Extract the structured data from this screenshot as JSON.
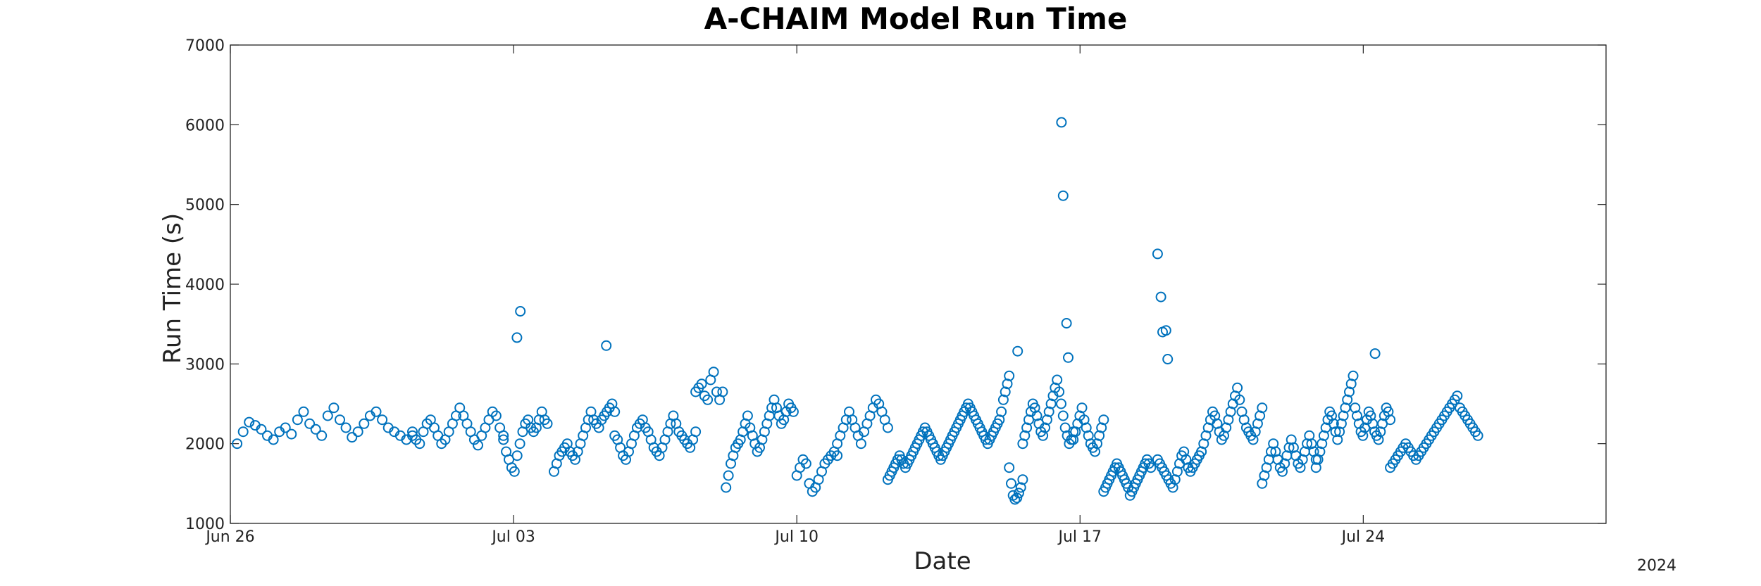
{
  "chart_data": {
    "type": "scatter",
    "title": "A-CHAIM Model Run Time",
    "xlabel": "Date",
    "ylabel": "Run Time (s)",
    "year_label": "2024",
    "x_unit": "date (2024)",
    "xlim": [
      "2024-06-26",
      "2024-07-30"
    ],
    "ylim": [
      1000,
      7000
    ],
    "x_ticks": [
      "Jun 26",
      "Jul 03",
      "Jul 10",
      "Jul 17",
      "Jul 24"
    ],
    "x_tick_dates": [
      "2024-06-26",
      "2024-07-03",
      "2024-07-10",
      "2024-07-17",
      "2024-07-24"
    ],
    "y_ticks": [
      "1000",
      "2000",
      "3000",
      "4000",
      "5000",
      "6000",
      "7000"
    ],
    "marker": "open-circle",
    "marker_color": "#0072BD",
    "grid": false,
    "highlight_points": [
      {
        "date": "2024-07-16T13:00",
        "run_time_s": 6030
      },
      {
        "date": "2024-07-16T14:00",
        "run_time_s": 5110
      },
      {
        "date": "2024-07-16T16:00",
        "run_time_s": 3510
      },
      {
        "date": "2024-07-16T17:00",
        "run_time_s": 3080
      },
      {
        "date": "2024-07-18T22:00",
        "run_time_s": 4380
      },
      {
        "date": "2024-07-19T00:00",
        "run_time_s": 3840
      },
      {
        "date": "2024-07-19T01:00",
        "run_time_s": 3400
      },
      {
        "date": "2024-07-19T03:00",
        "run_time_s": 3420
      },
      {
        "date": "2024-07-19T04:00",
        "run_time_s": 3060
      },
      {
        "date": "2024-07-03T04:00",
        "run_time_s": 3660
      },
      {
        "date": "2024-07-03T02:00",
        "run_time_s": 3330
      },
      {
        "date": "2024-07-15T11:00",
        "run_time_s": 3160
      },
      {
        "date": "2024-07-05T07:00",
        "run_time_s": 3230
      },
      {
        "date": "2024-07-24T07:00",
        "run_time_s": 3130
      }
    ],
    "segments": [
      {
        "start": "2024-06-26T04:00",
        "end": "2024-06-30T12:00",
        "values": [
          2000,
          2150,
          2270,
          2230,
          2180,
          2100,
          2050,
          2150,
          2200,
          2120,
          2300,
          2400,
          2250,
          2180,
          2100,
          2350,
          2450,
          2300,
          2200,
          2080,
          2150,
          2250,
          2350,
          2400,
          2300,
          2200,
          2150,
          2100,
          2050,
          2150
        ]
      },
      {
        "start": "2024-06-30T12:00",
        "end": "2024-07-02T18:00",
        "values": [
          2100,
          2050,
          2000,
          2150,
          2250,
          2300,
          2200,
          2100,
          2000,
          2050,
          2150,
          2250,
          2350,
          2450,
          2350,
          2250,
          2150,
          2050,
          1980,
          2100,
          2200,
          2300,
          2400,
          2350,
          2200,
          2100
        ]
      },
      {
        "start": "2024-07-02T18:00",
        "end": "2024-07-03T20:00",
        "values": [
          2050,
          1900,
          1800,
          1700,
          1650,
          1850,
          2000,
          2150,
          2250,
          2300,
          2200,
          2150,
          2200,
          2300,
          2400,
          2300,
          2250
        ]
      },
      {
        "start": "2024-07-04T00:00",
        "end": "2024-07-05T12:00",
        "values": [
          1650,
          1750,
          1850,
          1900,
          1950,
          2000,
          1900,
          1850,
          1800,
          1900,
          2000,
          2100,
          2200,
          2300,
          2400,
          2300,
          2250,
          2200,
          2300,
          2350,
          2400,
          2450,
          2500,
          2400
        ]
      },
      {
        "start": "2024-07-05T12:00",
        "end": "2024-07-07T12:00",
        "values": [
          2100,
          2050,
          1950,
          1850,
          1800,
          1900,
          2000,
          2100,
          2200,
          2250,
          2300,
          2200,
          2150,
          2050,
          1950,
          1900,
          1850,
          1950,
          2050,
          2150,
          2250,
          2350,
          2250,
          2150,
          2100,
          2050,
          2000,
          1950,
          2050,
          2150
        ]
      },
      {
        "start": "2024-07-07T12:00",
        "end": "2024-07-08T04:00",
        "values": [
          2650,
          2700,
          2750,
          2600,
          2550,
          2800,
          2900,
          2650,
          2550,
          2650
        ]
      },
      {
        "start": "2024-07-08T06:00",
        "end": "2024-07-09T22:00",
        "values": [
          1450,
          1600,
          1750,
          1850,
          1950,
          2000,
          2050,
          2150,
          2250,
          2350,
          2200,
          2100,
          2000,
          1900,
          1950,
          2050,
          2150,
          2250,
          2350,
          2450,
          2550,
          2450,
          2350,
          2250,
          2300,
          2400,
          2500,
          2450,
          2400
        ]
      },
      {
        "start": "2024-07-10T00:00",
        "end": "2024-07-11T00:00",
        "values": [
          1600,
          1700,
          1800,
          1750,
          1500,
          1400,
          1450,
          1550,
          1650,
          1750,
          1800,
          1850,
          1900,
          1850
        ]
      },
      {
        "start": "2024-07-11T00:00",
        "end": "2024-07-12T06:00",
        "values": [
          2000,
          2100,
          2200,
          2300,
          2400,
          2300,
          2200,
          2100,
          2000,
          2150,
          2250,
          2350,
          2450,
          2550,
          2500,
          2400,
          2300,
          2200
        ]
      },
      {
        "start": "2024-07-12T06:00",
        "end": "2024-07-15T06:00",
        "values": [
          1550,
          1600,
          1650,
          1700,
          1750,
          1800,
          1850,
          1800,
          1750,
          1700,
          1750,
          1800,
          1850,
          1900,
          1950,
          2000,
          2050,
          2100,
          2150,
          2200,
          2150,
          2100,
          2050,
          2000,
          1950,
          1900,
          1850,
          1800,
          1850,
          1900,
          1950,
          2000,
          2050,
          2100,
          2150,
          2200,
          2250,
          2300,
          2350,
          2400,
          2450,
          2500,
          2450,
          2400,
          2350,
          2300,
          2250,
          2200,
          2150,
          2100,
          2050,
          2000,
          2050,
          2100,
          2150,
          2200,
          2250,
          2300,
          2400,
          2550,
          2650,
          2750,
          2850
        ]
      },
      {
        "start": "2024-07-15T06:00",
        "end": "2024-07-15T14:00",
        "values": [
          1700,
          1500,
          1350,
          1300,
          1320,
          1380,
          1450,
          1550
        ]
      },
      {
        "start": "2024-07-15T14:00",
        "end": "2024-07-16T20:00",
        "values": [
          2000,
          2100,
          2200,
          2300,
          2400,
          2500,
          2450,
          2350,
          2250,
          2150,
          2100,
          2200,
          2300,
          2400,
          2500,
          2600,
          2700,
          2800,
          2650,
          2500,
          2350,
          2200,
          2100,
          2000,
          2050,
          2150
        ]
      },
      {
        "start": "2024-07-16T20:00",
        "end": "2024-07-17T14:00",
        "values": [
          2050,
          2150,
          2250,
          2350,
          2450,
          2300,
          2200,
          2100,
          2000,
          1950,
          1900,
          2000,
          2100,
          2200,
          2300
        ]
      },
      {
        "start": "2024-07-17T14:00",
        "end": "2024-07-18T18:00",
        "values": [
          1400,
          1450,
          1500,
          1550,
          1600,
          1650,
          1700,
          1750,
          1700,
          1650,
          1600,
          1550,
          1500,
          1450,
          1350,
          1400,
          1450,
          1500,
          1550,
          1600,
          1650,
          1700,
          1750,
          1800,
          1750,
          1700
        ]
      },
      {
        "start": "2024-07-18T22:00",
        "end": "2024-07-20T00:00",
        "values": [
          1800,
          1750,
          1700,
          1650,
          1600,
          1550,
          1500,
          1450,
          1550,
          1650,
          1750,
          1850,
          1900,
          1800,
          1700,
          1650,
          1700,
          1750,
          1800,
          1850,
          1900
        ]
      },
      {
        "start": "2024-07-20T00:00",
        "end": "2024-07-21T12:00",
        "values": [
          1900,
          2000,
          2100,
          2200,
          2300,
          2400,
          2350,
          2250,
          2150,
          2050,
          2100,
          2200,
          2300,
          2400,
          2500,
          2600,
          2700,
          2550,
          2400,
          2300,
          2200,
          2150,
          2100,
          2050,
          2150,
          2250,
          2350,
          2450
        ]
      },
      {
        "start": "2024-07-21T12:00",
        "end": "2024-07-22T20:00",
        "values": [
          1500,
          1600,
          1700,
          1800,
          1900,
          2000,
          1900,
          1800,
          1700,
          1650,
          1750,
          1850,
          1950,
          2050,
          1950,
          1850,
          1750,
          1700,
          1800,
          1900,
          2000,
          2100,
          2000,
          1900,
          1800
        ]
      },
      {
        "start": "2024-07-22T20:00",
        "end": "2024-07-24T16:00",
        "values": [
          1700,
          1800,
          1900,
          2000,
          2100,
          2200,
          2300,
          2400,
          2350,
          2250,
          2150,
          2050,
          2150,
          2250,
          2350,
          2450,
          2550,
          2650,
          2750,
          2850,
          2450,
          2350,
          2250,
          2150,
          2100,
          2200,
          2300,
          2400,
          2350,
          2250,
          2150,
          2100,
          2050,
          2150,
          2250,
          2350,
          2450,
          2400,
          2300
        ]
      },
      {
        "start": "2024-07-24T16:00",
        "end": "2024-07-26T20:00",
        "values": [
          1700,
          1750,
          1800,
          1850,
          1900,
          1950,
          2000,
          1950,
          1900,
          1850,
          1800,
          1850,
          1900,
          1950,
          2000,
          2050,
          2100,
          2150,
          2200,
          2250,
          2300,
          2350,
          2400,
          2450,
          2500,
          2550,
          2600,
          2450,
          2400,
          2350,
          2300,
          2250,
          2200,
          2150,
          2100
        ]
      }
    ]
  }
}
